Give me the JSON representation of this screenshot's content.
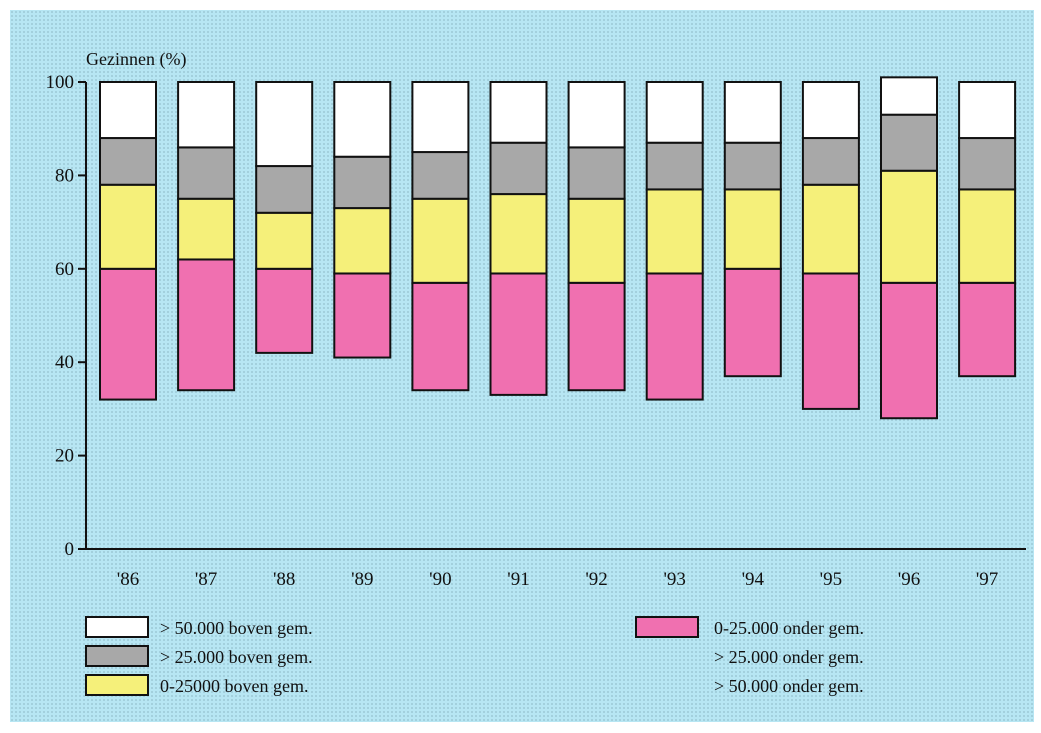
{
  "chart_data": {
    "type": "bar",
    "stacked": true,
    "ylabel": "Gezinnen (%)",
    "ylim": [
      0,
      100
    ],
    "yticks": [
      0,
      20,
      40,
      60,
      80,
      100
    ],
    "categories": [
      "'86",
      "'87",
      "'88",
      "'89",
      "'90",
      "'91",
      "'92",
      "'93",
      "'94",
      "'95",
      "'96",
      "'97"
    ],
    "series": [
      {
        "name": "> 50.000 onder gem.",
        "color": "none",
        "values": [
          0,
          0,
          0,
          0,
          0,
          0,
          0,
          0,
          0,
          0,
          0,
          0
        ]
      },
      {
        "name": "> 25.000 onder gem.",
        "color": "none",
        "values": [
          32,
          34,
          42,
          41,
          34,
          33,
          34,
          32,
          37,
          30,
          28,
          37
        ]
      },
      {
        "name": "0-25.000 onder gem.",
        "color": "#f070b0",
        "values": [
          28,
          28,
          18,
          18,
          23,
          26,
          23,
          27,
          23,
          29,
          29,
          20
        ]
      },
      {
        "name": "0-25000 boven gem.",
        "color": "#f5f07a",
        "values": [
          18,
          13,
          12,
          14,
          18,
          17,
          18,
          18,
          17,
          19,
          24,
          20
        ]
      },
      {
        "name": "> 25.000 boven gem.",
        "color": "#a8a8a8",
        "values": [
          10,
          11,
          10,
          11,
          10,
          11,
          11,
          10,
          10,
          10,
          12,
          11
        ]
      },
      {
        "name": "> 50.000 boven gem.",
        "color": "#ffffff",
        "values": [
          12,
          14,
          18,
          16,
          15,
          13,
          14,
          13,
          13,
          12,
          8,
          12
        ]
      }
    ],
    "grid": false,
    "legend": {
      "left": [
        "> 50.000 boven gem.",
        "> 25.000 boven gem.",
        "0-25000 boven gem."
      ],
      "right": [
        "0-25.000 onder gem.",
        "> 25.000 onder gem.",
        "> 50.000 onder gem."
      ]
    }
  },
  "colors": {
    "background": "#b7e6f3",
    "white": "#ffffff",
    "gray": "#a8a8a8",
    "yellow": "#f5f07a",
    "pink": "#f070b0",
    "axis": "#111111"
  }
}
